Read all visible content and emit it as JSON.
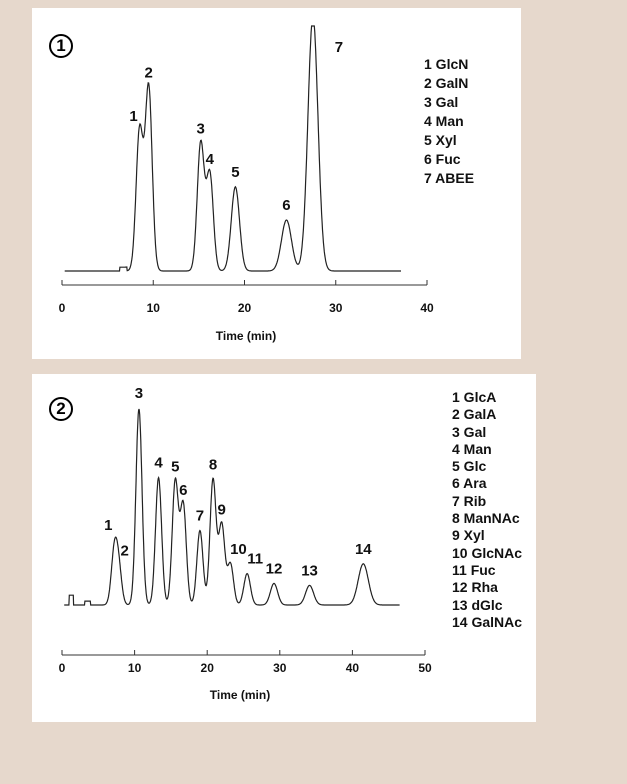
{
  "chart_data": [
    {
      "type": "line",
      "badge": "1",
      "xlabel": "Time (min)",
      "ylabel": "",
      "xlim": [
        0,
        40
      ],
      "xticks": [
        0,
        10,
        20,
        30,
        40
      ],
      "grid": false,
      "legend": [
        "1 GlcN",
        "2 GalN",
        "3 Gal",
        "4 Man",
        "5 Xyl",
        "6 Fuc",
        "7 ABEE"
      ],
      "legend_position": "right",
      "peaks": [
        {
          "label": "1",
          "x": 8.5,
          "height": 0.55
        },
        {
          "label": "2",
          "x": 9.5,
          "height": 0.72
        },
        {
          "label": "3",
          "x": 15.2,
          "height": 0.5
        },
        {
          "label": "4",
          "x": 16.2,
          "height": 0.38
        },
        {
          "label": "5",
          "x": 19.0,
          "height": 0.33
        },
        {
          "label": "6",
          "x": 24.6,
          "height": 0.2
        },
        {
          "label": "7",
          "x": 27.5,
          "height": 1.0,
          "truncated": true
        }
      ]
    },
    {
      "type": "line",
      "badge": "2",
      "xlabel": "Time (min)",
      "ylabel": "",
      "xlim": [
        0,
        50
      ],
      "xticks": [
        0,
        10,
        20,
        30,
        40,
        50
      ],
      "grid": false,
      "legend": [
        "1 GlcA",
        "2 GalA",
        "3 Gal",
        "4 Man",
        "5 Glc",
        "6 Ara",
        "7 Rib",
        "8 ManNAc",
        "9 Xyl",
        "10 GlcNAc",
        "11 Fuc",
        "12 Rha",
        "13 dGlc",
        "14 GalNAc"
      ],
      "legend_position": "right",
      "peaks": [
        {
          "label": "1",
          "x": 7.2,
          "height": 0.26
        },
        {
          "label": "2",
          "x": 7.8,
          "height": 0.18
        },
        {
          "label": "3",
          "x": 10.6,
          "height": 1.0
        },
        {
          "label": "4",
          "x": 13.3,
          "height": 0.65
        },
        {
          "label": "5",
          "x": 15.6,
          "height": 0.63
        },
        {
          "label": "6",
          "x": 16.7,
          "height": 0.51
        },
        {
          "label": "7",
          "x": 19.0,
          "height": 0.38
        },
        {
          "label": "8",
          "x": 20.8,
          "height": 0.64
        },
        {
          "label": "9",
          "x": 22.0,
          "height": 0.41
        },
        {
          "label": "10",
          "x": 23.2,
          "height": 0.21
        },
        {
          "label": "11",
          "x": 25.5,
          "height": 0.16
        },
        {
          "label": "12",
          "x": 29.2,
          "height": 0.11
        },
        {
          "label": "13",
          "x": 34.1,
          "height": 0.1
        },
        {
          "label": "14",
          "x": 41.5,
          "height": 0.21
        }
      ]
    }
  ]
}
